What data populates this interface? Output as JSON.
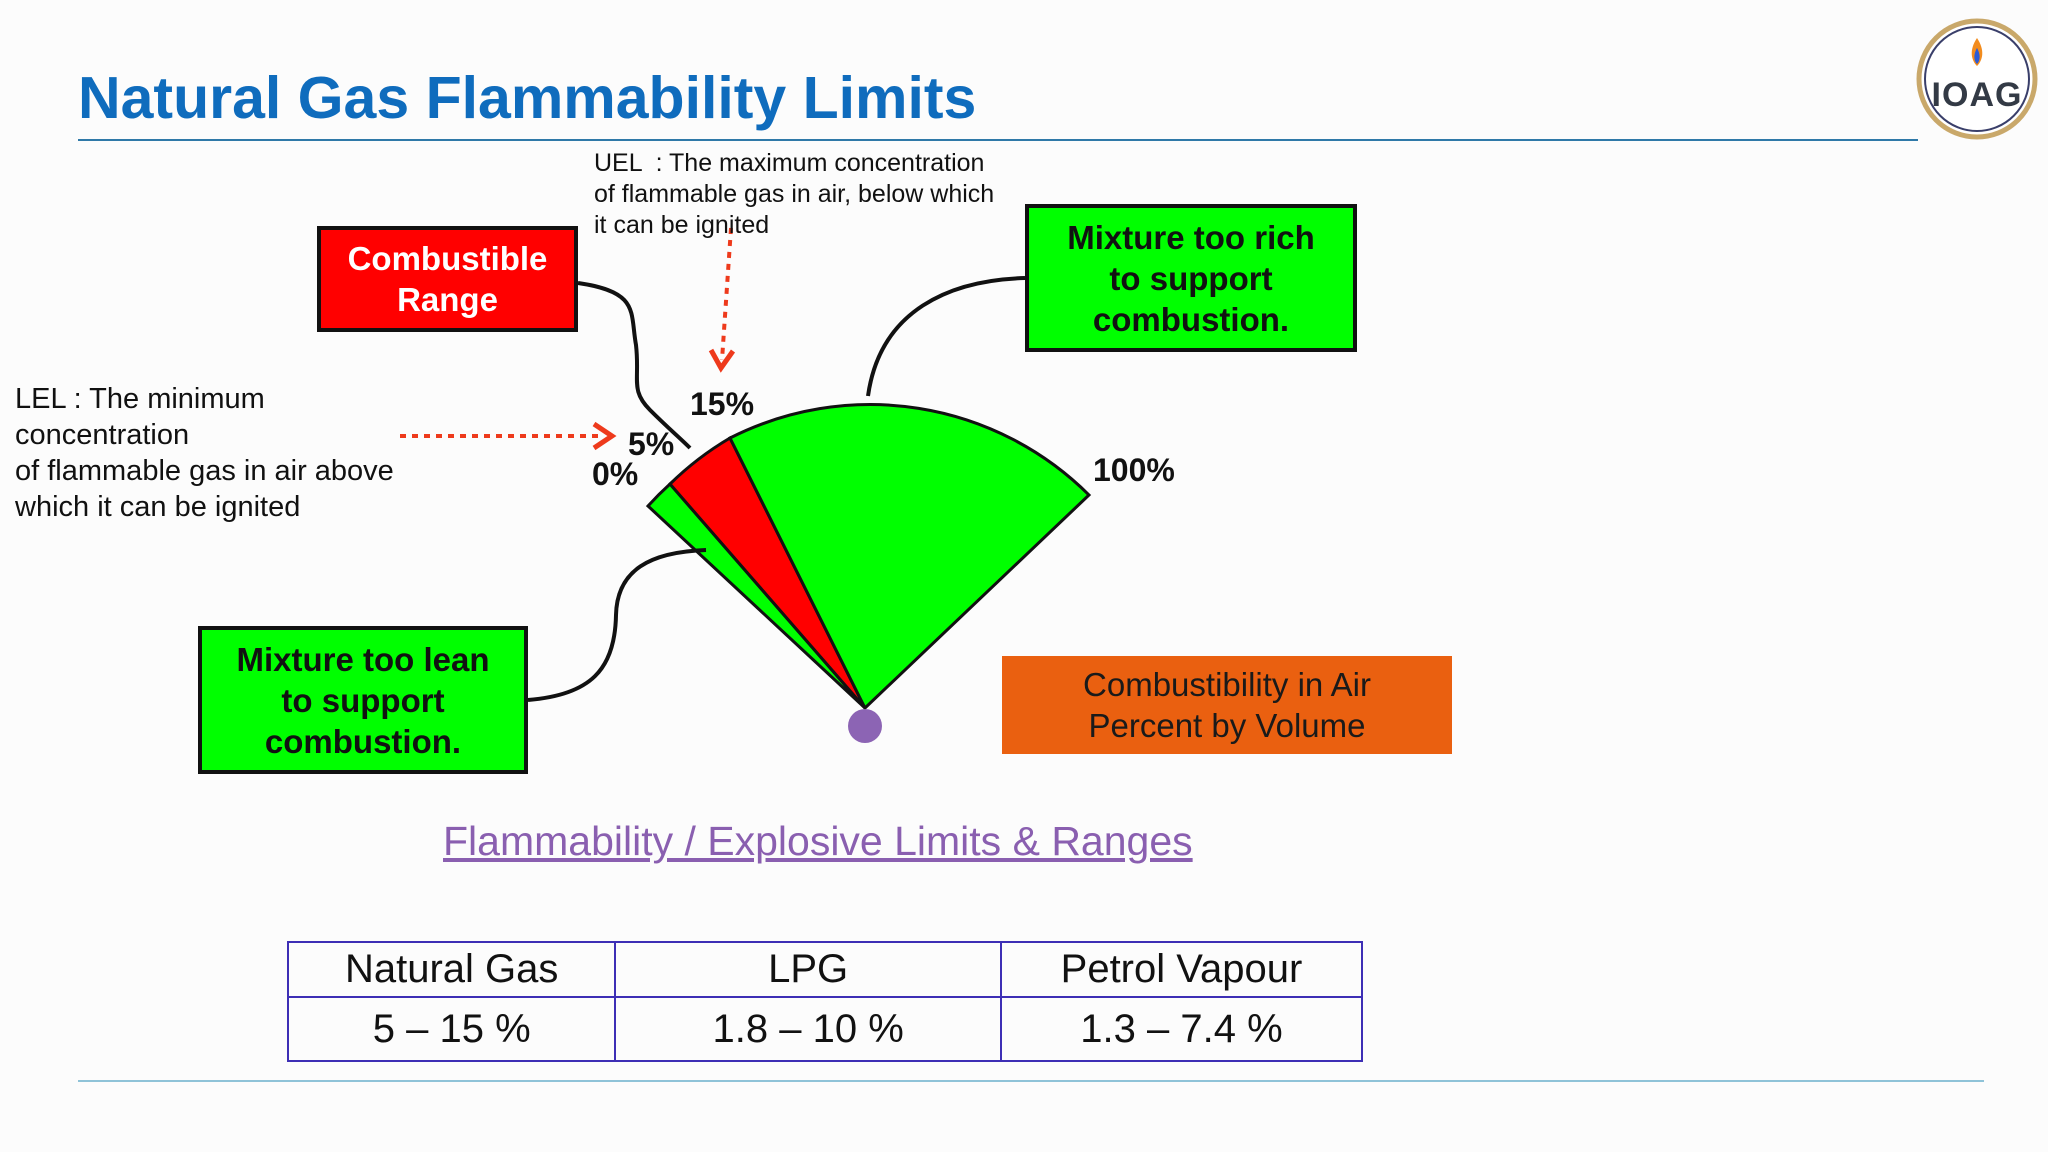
{
  "slide": {
    "title": "Natural Gas Flammability Limits",
    "logo_text": "IOAG"
  },
  "diagram": {
    "combustible_range_label": "Combustible\nRange",
    "rich_label": "Mixture too rich\nto support\ncombustion.",
    "lean_label": "Mixture too lean\nto support\ncombustion.",
    "uel_note": "UEL  : The maximum concentration\nof flammable gas in air, below which\nit can be ignited",
    "lel_note": "LEL : The minimum\nconcentration\nof flammable gas in air above\nwhich it can be ignited",
    "pct_0": "0%",
    "pct_5": "5%",
    "pct_15": "15%",
    "pct_100": "100%",
    "axis_label": "Combustibility in Air\nPercent by Volume",
    "colors": {
      "lean_region": "#00ff00",
      "combustible_region": "#ff0000",
      "rich_region": "#00ff00",
      "arrow": "#ee3a1c",
      "pivot": "#8c64b4",
      "axis_box": "#ea6010"
    }
  },
  "section_link": "Flammability / Explosive Limits & Ranges",
  "table": {
    "headers": [
      "Natural Gas",
      "LPG",
      "Petrol Vapour"
    ],
    "values": [
      "5 – 15 %",
      "1.8 – 10 %",
      "1.3 – 7.4 %"
    ]
  }
}
